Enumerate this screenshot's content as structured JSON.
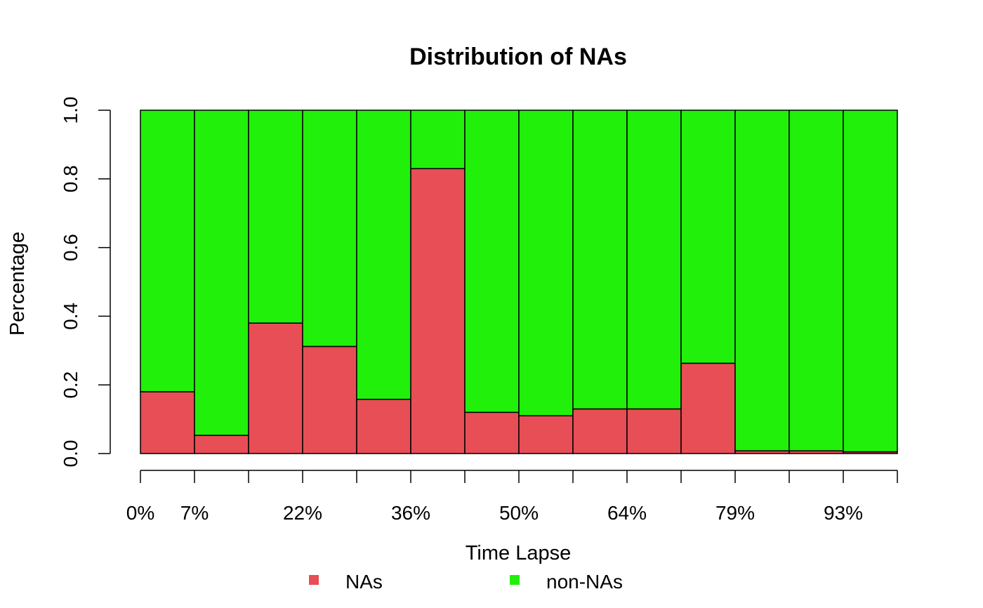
{
  "chart_data": {
    "type": "bar",
    "stacked": true,
    "title": "Distribution of NAs",
    "xlabel": "Time Lapse",
    "ylabel": "Percentage",
    "ylim": [
      0,
      1
    ],
    "yticks": [
      "0.0",
      "0.2",
      "0.4",
      "0.6",
      "0.8",
      "1.0"
    ],
    "xtick_labels": [
      "0%",
      "7%",
      "",
      "22%",
      "",
      "36%",
      "",
      "50%",
      "",
      "64%",
      "",
      "79%",
      "",
      "93%",
      ""
    ],
    "series": [
      {
        "name": "NAs",
        "color": "#E74E55",
        "values": [
          0.18,
          0.053,
          0.38,
          0.312,
          0.158,
          0.83,
          0.12,
          0.11,
          0.13,
          0.13,
          0.263,
          0.008,
          0.008,
          0.005
        ]
      },
      {
        "name": "non-NAs",
        "color": "#21F00A",
        "values": [
          0.82,
          0.947,
          0.62,
          0.688,
          0.842,
          0.17,
          0.88,
          0.89,
          0.87,
          0.87,
          0.737,
          0.992,
          0.992,
          0.995
        ]
      }
    ],
    "legend": {
      "placement": "bottom-center",
      "entries": [
        "NAs",
        "non-NAs"
      ]
    }
  }
}
